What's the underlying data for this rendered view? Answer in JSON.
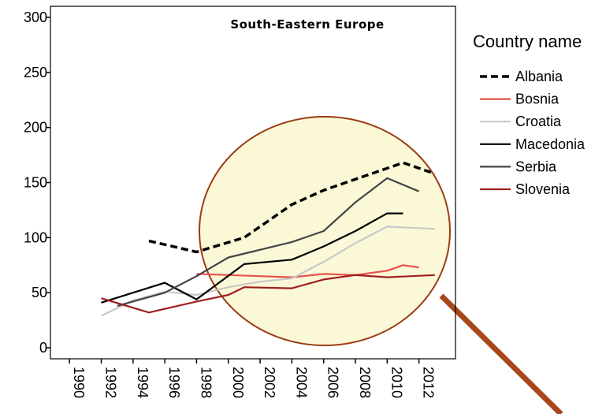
{
  "chart_data": {
    "type": "line",
    "title": "South-Eastern Europe",
    "xlabel": "",
    "ylabel": "",
    "xlim": [
      1988.8,
      2014.3
    ],
    "ylim": [
      -10,
      310
    ],
    "x_ticks": [
      1990,
      1992,
      1994,
      1996,
      1998,
      2000,
      2002,
      2004,
      2006,
      2008,
      2010,
      2012
    ],
    "y_ticks": [
      0,
      50,
      100,
      150,
      200,
      250,
      300
    ],
    "grid": false,
    "legend": {
      "title": "Country name",
      "placement": "right"
    },
    "series": [
      {
        "name": "Albania",
        "color": "#000000",
        "dash": "dashed",
        "points": [
          [
            1995,
            97
          ],
          [
            1998,
            87
          ],
          [
            2001,
            100
          ],
          [
            2004,
            130
          ],
          [
            2006,
            143
          ],
          [
            2008,
            153
          ],
          [
            2011,
            168
          ],
          [
            2013,
            158
          ]
        ]
      },
      {
        "name": "Bosnia",
        "color": "#e8524a",
        "dash": "solid",
        "points": [
          [
            1998,
            67
          ],
          [
            2002,
            65
          ],
          [
            2004,
            64
          ],
          [
            2006,
            67
          ],
          [
            2008,
            66
          ],
          [
            2010,
            70
          ],
          [
            2011,
            75
          ],
          [
            2012,
            73
          ]
        ]
      },
      {
        "name": "Croatia",
        "color": "#c8c8c8",
        "dash": "solid",
        "points": [
          [
            1992,
            29
          ],
          [
            1994,
            43
          ],
          [
            1996,
            51
          ],
          [
            1998,
            48
          ],
          [
            2000,
            55
          ],
          [
            2002,
            60
          ],
          [
            2004,
            63
          ],
          [
            2006,
            78
          ],
          [
            2008,
            95
          ],
          [
            2010,
            110
          ],
          [
            2013,
            108
          ]
        ]
      },
      {
        "name": "Macedonia",
        "color": "#000000",
        "dash": "solid",
        "points": [
          [
            1992,
            41
          ],
          [
            1996,
            59
          ],
          [
            1998,
            44
          ],
          [
            2001,
            76
          ],
          [
            2004,
            80
          ],
          [
            2006,
            92
          ],
          [
            2008,
            106
          ],
          [
            2010,
            122
          ],
          [
            2011,
            122
          ]
        ]
      },
      {
        "name": "Serbia",
        "color": "#444444",
        "dash": "solid",
        "points": [
          [
            1993,
            38
          ],
          [
            1996,
            50
          ],
          [
            1998,
            65
          ],
          [
            2000,
            82
          ],
          [
            2004,
            96
          ],
          [
            2006,
            106
          ],
          [
            2008,
            132
          ],
          [
            2010,
            154
          ],
          [
            2012,
            142
          ]
        ]
      },
      {
        "name": "Slovenia",
        "color": "#a01e1e",
        "dash": "solid",
        "points": [
          [
            1992,
            45
          ],
          [
            1995,
            32
          ],
          [
            1998,
            42
          ],
          [
            2000,
            48
          ],
          [
            2001,
            55
          ],
          [
            2004,
            54
          ],
          [
            2006,
            62
          ],
          [
            2008,
            66
          ],
          [
            2010,
            64
          ],
          [
            2013,
            66
          ]
        ]
      }
    ]
  }
}
